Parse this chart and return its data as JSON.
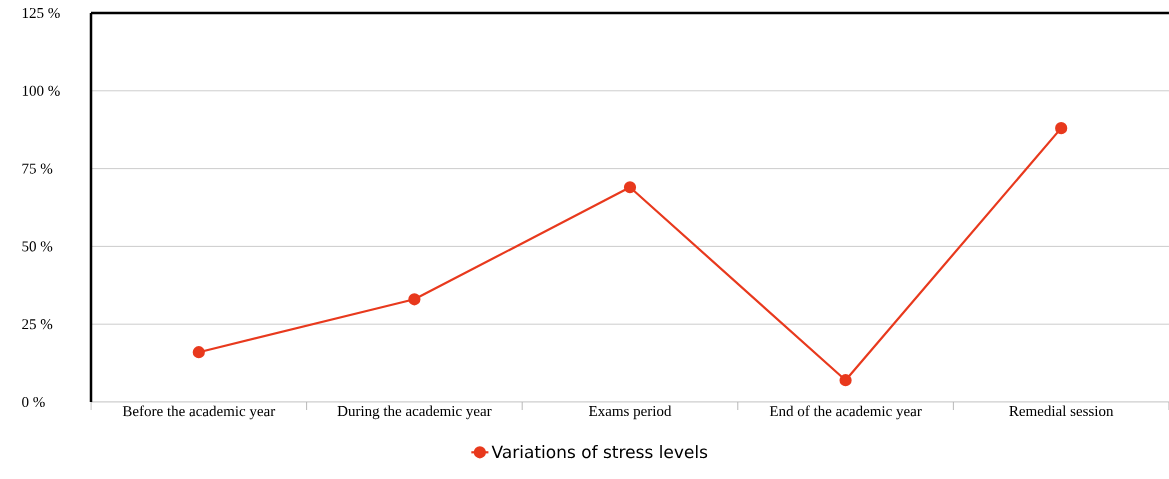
{
  "chart_data": {
    "type": "line",
    "categories": [
      "Before the academic year",
      "During the academic year",
      "Exams period",
      "End of the academic year",
      "Remedial session"
    ],
    "series": [
      {
        "name": "Variations of stress levels",
        "color": "#e8391d",
        "values": [
          16,
          33,
          69,
          7,
          88
        ]
      }
    ],
    "ylim": [
      0,
      125
    ],
    "yticks": [
      {
        "value": 0,
        "label": "0 %"
      },
      {
        "value": 25,
        "label": "25 %"
      },
      {
        "value": 50,
        "label": "50 %"
      },
      {
        "value": 75,
        "label": "75 %"
      },
      {
        "value": 100,
        "label": "100 %"
      },
      {
        "value": 125,
        "label": "125 %"
      }
    ],
    "grid": "y",
    "legend": "bottom",
    "marker": "circle",
    "line_style": "solid"
  }
}
